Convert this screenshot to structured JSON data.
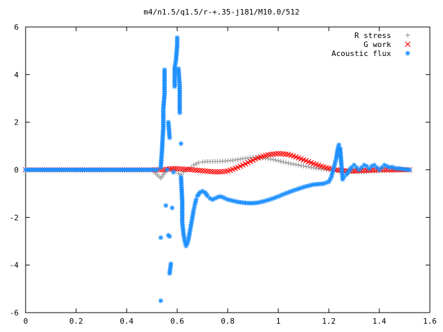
{
  "chart_data": {
    "type": "scatter",
    "title": "m4/n1.5/q1.5/r-+.35-j181/M10.0/512",
    "xlabel": "",
    "ylabel": "",
    "xlim": [
      0,
      1.6
    ],
    "ylim": [
      -6,
      6
    ],
    "x_ticks": [
      "0",
      "0.2",
      "0.4",
      "0.6",
      "0.8",
      "1",
      "1.2",
      "1.4",
      "1.6"
    ],
    "y_ticks": [
      "-6",
      "-4",
      "-2",
      "0",
      "2",
      "4",
      "6"
    ],
    "grid": false,
    "legend_position": "top-right",
    "series": [
      {
        "name": "R stress",
        "marker": "plus",
        "color": "#a0a0a0",
        "points": [
          [
            0.0,
            0.0
          ],
          [
            0.1,
            0.0
          ],
          [
            0.2,
            0.0
          ],
          [
            0.3,
            0.0
          ],
          [
            0.4,
            0.0
          ],
          [
            0.5,
            0.0
          ],
          [
            0.535,
            -0.35
          ],
          [
            0.545,
            -0.2
          ],
          [
            0.555,
            -0.05
          ],
          [
            0.565,
            0.05
          ],
          [
            0.575,
            0.0
          ],
          [
            0.585,
            0.0
          ],
          [
            0.595,
            -0.05
          ],
          [
            0.605,
            -0.15
          ],
          [
            0.615,
            -0.2
          ],
          [
            0.625,
            -0.1
          ],
          [
            0.635,
            0.0
          ],
          [
            0.645,
            0.05
          ],
          [
            0.655,
            0.1
          ],
          [
            0.665,
            0.2
          ],
          [
            0.675,
            0.25
          ],
          [
            0.685,
            0.3
          ],
          [
            0.7,
            0.33
          ],
          [
            0.72,
            0.35
          ],
          [
            0.74,
            0.35
          ],
          [
            0.76,
            0.35
          ],
          [
            0.78,
            0.36
          ],
          [
            0.8,
            0.38
          ],
          [
            0.82,
            0.4
          ],
          [
            0.84,
            0.43
          ],
          [
            0.86,
            0.47
          ],
          [
            0.88,
            0.5
          ],
          [
            0.9,
            0.52
          ],
          [
            0.92,
            0.52
          ],
          [
            0.94,
            0.5
          ],
          [
            0.96,
            0.47
          ],
          [
            0.98,
            0.43
          ],
          [
            1.0,
            0.38
          ],
          [
            1.02,
            0.33
          ],
          [
            1.04,
            0.28
          ],
          [
            1.06,
            0.24
          ],
          [
            1.08,
            0.2
          ],
          [
            1.1,
            0.16
          ],
          [
            1.12,
            0.12
          ],
          [
            1.14,
            0.08
          ],
          [
            1.16,
            0.05
          ],
          [
            1.18,
            0.02
          ],
          [
            1.2,
            0.0
          ],
          [
            1.22,
            -0.02
          ],
          [
            1.24,
            -0.04
          ],
          [
            1.26,
            -0.06
          ],
          [
            1.28,
            -0.07
          ],
          [
            1.3,
            -0.08
          ],
          [
            1.32,
            -0.08
          ],
          [
            1.34,
            -0.08
          ],
          [
            1.36,
            -0.07
          ],
          [
            1.38,
            -0.06
          ],
          [
            1.4,
            -0.05
          ],
          [
            1.42,
            -0.04
          ],
          [
            1.44,
            -0.03
          ],
          [
            1.46,
            -0.02
          ],
          [
            1.48,
            -0.01
          ],
          [
            1.5,
            0.0
          ],
          [
            1.52,
            0.0
          ]
        ]
      },
      {
        "name": "G work",
        "marker": "cross",
        "color": "#ff0000",
        "points": [
          [
            0.0,
            0.0
          ],
          [
            0.1,
            0.0
          ],
          [
            0.2,
            0.0
          ],
          [
            0.3,
            0.0
          ],
          [
            0.4,
            0.0
          ],
          [
            0.5,
            0.0
          ],
          [
            0.54,
            0.0
          ],
          [
            0.56,
            0.02
          ],
          [
            0.58,
            0.05
          ],
          [
            0.6,
            0.05
          ],
          [
            0.62,
            0.03
          ],
          [
            0.64,
            0.02
          ],
          [
            0.66,
            0.0
          ],
          [
            0.68,
            -0.02
          ],
          [
            0.7,
            -0.04
          ],
          [
            0.72,
            -0.06
          ],
          [
            0.74,
            -0.08
          ],
          [
            0.76,
            -0.09
          ],
          [
            0.78,
            -0.08
          ],
          [
            0.8,
            -0.05
          ],
          [
            0.82,
            0.02
          ],
          [
            0.84,
            0.1
          ],
          [
            0.86,
            0.2
          ],
          [
            0.88,
            0.3
          ],
          [
            0.9,
            0.4
          ],
          [
            0.92,
            0.5
          ],
          [
            0.94,
            0.57
          ],
          [
            0.96,
            0.63
          ],
          [
            0.98,
            0.66
          ],
          [
            1.0,
            0.68
          ],
          [
            1.02,
            0.67
          ],
          [
            1.04,
            0.64
          ],
          [
            1.06,
            0.58
          ],
          [
            1.08,
            0.5
          ],
          [
            1.1,
            0.42
          ],
          [
            1.12,
            0.34
          ],
          [
            1.14,
            0.26
          ],
          [
            1.16,
            0.19
          ],
          [
            1.18,
            0.12
          ],
          [
            1.2,
            0.06
          ],
          [
            1.22,
            0.02
          ],
          [
            1.24,
            -0.02
          ],
          [
            1.26,
            -0.04
          ],
          [
            1.28,
            -0.05
          ],
          [
            1.3,
            -0.05
          ],
          [
            1.32,
            -0.04
          ],
          [
            1.34,
            -0.03
          ],
          [
            1.36,
            -0.02
          ],
          [
            1.38,
            -0.01
          ],
          [
            1.4,
            0.0
          ],
          [
            1.42,
            0.0
          ],
          [
            1.44,
            0.0
          ],
          [
            1.46,
            0.0
          ],
          [
            1.48,
            0.0
          ],
          [
            1.5,
            0.0
          ],
          [
            1.52,
            0.0
          ]
        ]
      },
      {
        "name": "Acoustic flux",
        "marker": "star",
        "color": "#1e90ff",
        "points": [
          [
            0.0,
            0.0
          ],
          [
            0.05,
            0.0
          ],
          [
            0.1,
            0.0
          ],
          [
            0.15,
            0.0
          ],
          [
            0.2,
            0.0
          ],
          [
            0.25,
            0.0
          ],
          [
            0.3,
            0.0
          ],
          [
            0.35,
            0.0
          ],
          [
            0.4,
            0.0
          ],
          [
            0.45,
            0.0
          ],
          [
            0.5,
            0.0
          ],
          [
            0.52,
            0.0
          ],
          [
            0.535,
            -5.5
          ],
          [
            0.535,
            -2.85
          ],
          [
            0.535,
            0.1
          ],
          [
            0.54,
            0.85
          ],
          [
            0.545,
            1.8
          ],
          [
            0.545,
            2.55
          ],
          [
            0.55,
            3.2
          ],
          [
            0.55,
            4.2
          ],
          [
            0.555,
            -1.5
          ],
          [
            0.56,
            0.0
          ],
          [
            0.565,
            -2.75
          ],
          [
            0.57,
            -2.8
          ],
          [
            0.57,
            1.35
          ],
          [
            0.565,
            2.0
          ],
          [
            0.575,
            -3.95
          ],
          [
            0.57,
            -4.35
          ],
          [
            0.58,
            -1.6
          ],
          [
            0.585,
            -0.1
          ],
          [
            0.59,
            3.5
          ],
          [
            0.59,
            4.3
          ],
          [
            0.595,
            4.6
          ],
          [
            0.6,
            5.25
          ],
          [
            0.6,
            5.55
          ],
          [
            0.605,
            4.25
          ],
          [
            0.61,
            3.5
          ],
          [
            0.61,
            2.4
          ],
          [
            0.615,
            1.1
          ],
          [
            0.615,
            -0.3
          ],
          [
            0.62,
            -1.35
          ],
          [
            0.62,
            -2.2
          ],
          [
            0.625,
            -2.7
          ],
          [
            0.63,
            -3.0
          ],
          [
            0.635,
            -3.2
          ],
          [
            0.64,
            -3.1
          ],
          [
            0.645,
            -2.9
          ],
          [
            0.65,
            -2.6
          ],
          [
            0.655,
            -2.3
          ],
          [
            0.66,
            -2.0
          ],
          [
            0.665,
            -1.7
          ],
          [
            0.67,
            -1.45
          ],
          [
            0.675,
            -1.25
          ],
          [
            0.68,
            -1.1
          ],
          [
            0.69,
            -0.95
          ],
          [
            0.7,
            -0.9
          ],
          [
            0.71,
            -0.95
          ],
          [
            0.72,
            -1.1
          ],
          [
            0.73,
            -1.2
          ],
          [
            0.74,
            -1.25
          ],
          [
            0.75,
            -1.2
          ],
          [
            0.76,
            -1.15
          ],
          [
            0.77,
            -1.12
          ],
          [
            0.78,
            -1.15
          ],
          [
            0.79,
            -1.2
          ],
          [
            0.8,
            -1.25
          ],
          [
            0.82,
            -1.3
          ],
          [
            0.84,
            -1.35
          ],
          [
            0.86,
            -1.38
          ],
          [
            0.88,
            -1.4
          ],
          [
            0.9,
            -1.4
          ],
          [
            0.92,
            -1.38
          ],
          [
            0.94,
            -1.33
          ],
          [
            0.96,
            -1.27
          ],
          [
            0.98,
            -1.2
          ],
          [
            1.0,
            -1.12
          ],
          [
            1.02,
            -1.03
          ],
          [
            1.04,
            -0.95
          ],
          [
            1.06,
            -0.87
          ],
          [
            1.08,
            -0.8
          ],
          [
            1.1,
            -0.73
          ],
          [
            1.12,
            -0.67
          ],
          [
            1.14,
            -0.62
          ],
          [
            1.16,
            -0.6
          ],
          [
            1.18,
            -0.58
          ],
          [
            1.2,
            -0.5
          ],
          [
            1.21,
            -0.3
          ],
          [
            1.22,
            0.1
          ],
          [
            1.23,
            0.5
          ],
          [
            1.235,
            0.85
          ],
          [
            1.24,
            1.05
          ],
          [
            1.245,
            0.9
          ],
          [
            1.25,
            0.2
          ],
          [
            1.255,
            -0.4
          ],
          [
            1.26,
            -0.3
          ],
          [
            1.27,
            -0.2
          ],
          [
            1.28,
            -0.05
          ],
          [
            1.29,
            0.1
          ],
          [
            1.3,
            0.2
          ],
          [
            1.31,
            0.1
          ],
          [
            1.32,
            0.0
          ],
          [
            1.33,
            0.1
          ],
          [
            1.34,
            0.2
          ],
          [
            1.35,
            0.15
          ],
          [
            1.36,
            0.05
          ],
          [
            1.37,
            0.15
          ],
          [
            1.38,
            0.2
          ],
          [
            1.39,
            0.1
          ],
          [
            1.4,
            0.0
          ],
          [
            1.41,
            0.1
          ],
          [
            1.42,
            0.2
          ],
          [
            1.43,
            0.15
          ],
          [
            1.44,
            0.1
          ],
          [
            1.45,
            0.12
          ],
          [
            1.46,
            0.08
          ],
          [
            1.47,
            0.05
          ],
          [
            1.48,
            0.06
          ],
          [
            1.49,
            0.03
          ],
          [
            1.5,
            0.02
          ],
          [
            1.51,
            0.01
          ],
          [
            1.52,
            0.0
          ]
        ]
      }
    ]
  }
}
